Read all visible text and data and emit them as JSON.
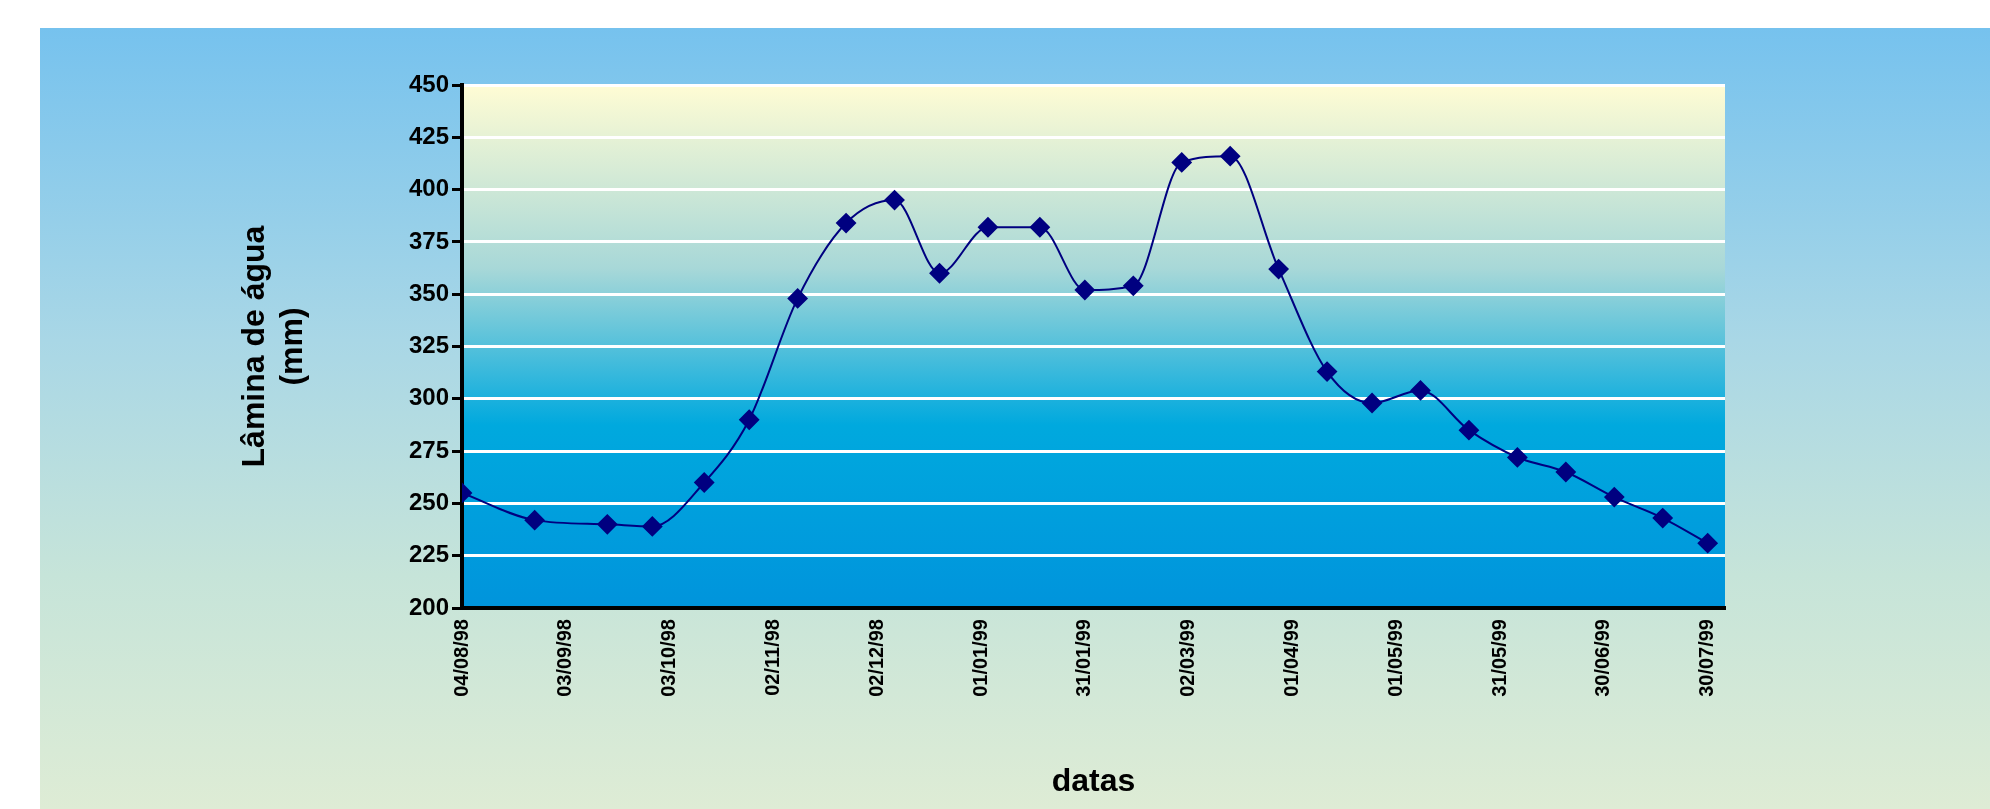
{
  "chart_data": {
    "type": "line",
    "xlabel": "datas",
    "ylabel": "Lâmina de água\n(mm)",
    "x": [
      "1998-08-04",
      "1998-08-25",
      "1998-09-15",
      "1998-09-28",
      "1998-10-13",
      "1998-10-26",
      "1998-11-09",
      "1998-11-23",
      "1998-12-07",
      "1998-12-20",
      "1999-01-03",
      "1999-01-18",
      "1999-01-31",
      "1999-02-14",
      "1999-02-28",
      "1999-03-14",
      "1999-03-28",
      "1999-04-11",
      "1999-04-24",
      "1999-05-08",
      "1999-05-22",
      "1999-06-05",
      "1999-06-19",
      "1999-07-03",
      "1999-07-17",
      "1999-07-30"
    ],
    "series": [
      {
        "color": "#000080",
        "values": [
          255,
          242,
          240,
          239,
          260,
          290,
          348,
          384,
          395,
          360,
          382,
          382,
          352,
          354,
          413,
          416,
          362,
          313,
          298,
          304,
          285,
          272,
          265,
          253,
          243,
          231
        ]
      }
    ],
    "xlim": [
      "1998-08-04",
      "1999-08-04"
    ],
    "xticks": [
      {
        "value": "1998-08-04",
        "label": "04/08/98"
      },
      {
        "value": "1998-09-03",
        "label": "03/09/98"
      },
      {
        "value": "1998-10-03",
        "label": "03/10/98"
      },
      {
        "value": "1998-11-02",
        "label": "02/11/98"
      },
      {
        "value": "1998-12-02",
        "label": "02/12/98"
      },
      {
        "value": "1999-01-01",
        "label": "01/01/99"
      },
      {
        "value": "1999-01-31",
        "label": "31/01/99"
      },
      {
        "value": "1999-03-02",
        "label": "02/03/99"
      },
      {
        "value": "1999-04-01",
        "label": "01/04/99"
      },
      {
        "value": "1999-05-01",
        "label": "01/05/99"
      },
      {
        "value": "1999-05-31",
        "label": "31/05/99"
      },
      {
        "value": "1999-06-30",
        "label": "30/06/99"
      },
      {
        "value": "1999-07-30",
        "label": "30/07/99"
      }
    ],
    "ylim": [
      200,
      450
    ],
    "yticks": [
      200,
      225,
      250,
      275,
      300,
      325,
      350,
      375,
      400,
      425,
      450
    ],
    "grid": "y",
    "legend": false,
    "marker": "diamond",
    "line_style": "solid"
  }
}
